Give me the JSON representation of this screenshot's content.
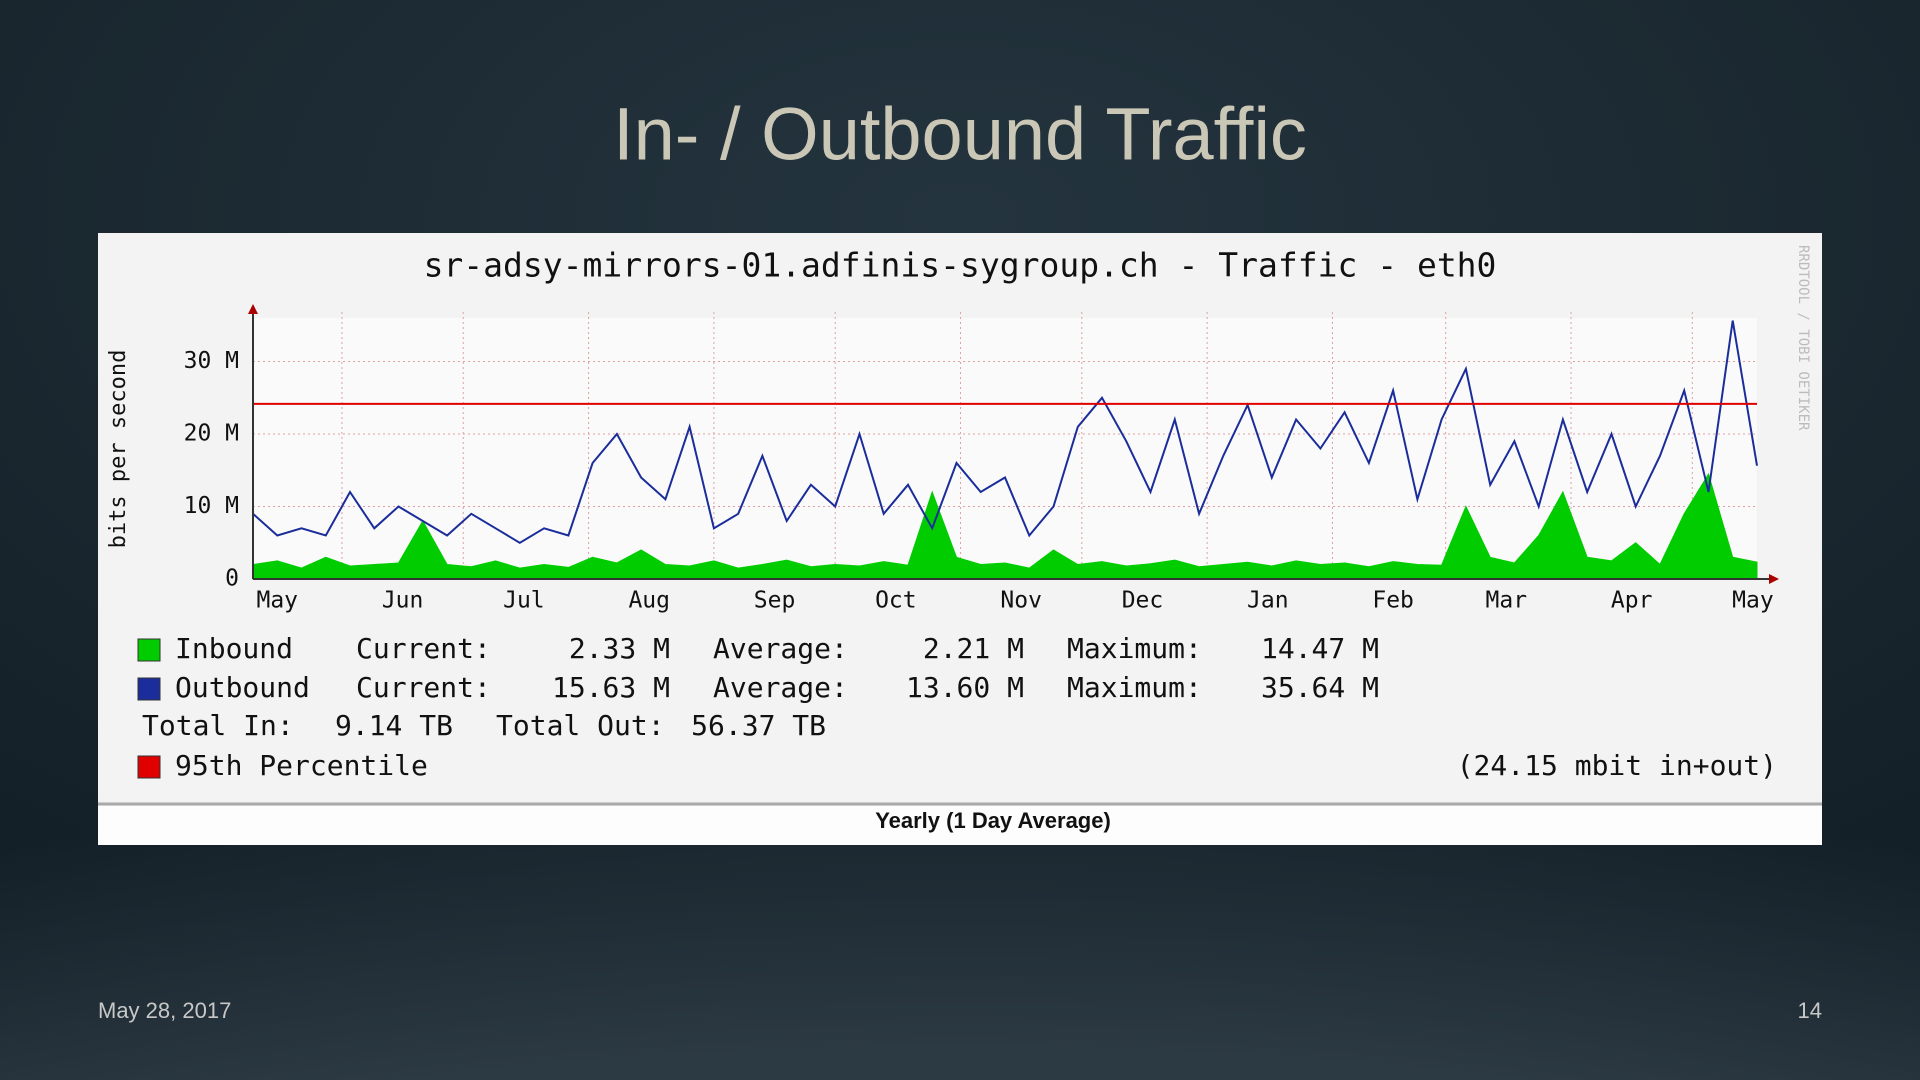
{
  "slide_title": "In- / Outbound Traffic",
  "date": "May 28, 2017",
  "page_number": "14",
  "chart_data": {
    "type": "line",
    "title": "sr-adsy-mirrors-01.adfinis-sygroup.ch - Traffic - eth0",
    "y_label": "bits per second",
    "watermark": "RRDTOOL / TOBI OETIKER",
    "footer": "Yearly (1 Day Average)",
    "xlim": [
      0,
      372
    ],
    "xticks": [
      {
        "value": -9,
        "label": "May"
      },
      {
        "value": 22,
        "label": "Jun"
      },
      {
        "value": 52,
        "label": "Jul"
      },
      {
        "value": 83,
        "label": "Aug"
      },
      {
        "value": 114,
        "label": "Sep"
      },
      {
        "value": 144,
        "label": "Oct"
      },
      {
        "value": 175,
        "label": "Nov"
      },
      {
        "value": 205,
        "label": "Dec"
      },
      {
        "value": 236,
        "label": "Jan"
      },
      {
        "value": 267,
        "label": "Feb"
      },
      {
        "value": 295,
        "label": "Mar"
      },
      {
        "value": 326,
        "label": "Apr"
      },
      {
        "value": 356,
        "label": "May"
      }
    ],
    "ylim": [
      0,
      36
    ],
    "yticks": [
      0,
      {
        "value": 10,
        "label": "10 M"
      },
      {
        "value": 20,
        "label": "20 M"
      },
      {
        "value": 30,
        "label": "30 M"
      }
    ],
    "grid": true,
    "x": [
      0,
      6,
      12,
      18,
      24,
      30,
      36,
      42,
      48,
      54,
      60,
      66,
      72,
      78,
      84,
      90,
      96,
      102,
      108,
      114,
      120,
      126,
      132,
      138,
      144,
      150,
      156,
      162,
      168,
      174,
      180,
      186,
      192,
      198,
      204,
      210,
      216,
      222,
      228,
      234,
      240,
      246,
      252,
      258,
      264,
      270,
      276,
      282,
      288,
      294,
      300,
      306,
      312,
      318,
      324,
      330,
      336,
      342,
      348,
      354,
      360,
      366,
      372
    ],
    "series": [
      {
        "name": "Inbound",
        "color": "#00cc00",
        "style": "area",
        "stats": [
          "Current:",
          "2.33 M",
          "Average:",
          "2.21 M",
          "Maximum:",
          "14.47 M"
        ],
        "values": [
          2,
          2.5,
          1.5,
          3,
          1.8,
          2,
          2.2,
          8,
          2,
          1.7,
          2.5,
          1.5,
          2,
          1.6,
          3,
          2.2,
          4,
          2,
          1.8,
          2.5,
          1.5,
          2,
          2.6,
          1.7,
          2,
          1.8,
          2.4,
          1.9,
          12,
          3,
          2,
          2.2,
          1.5,
          4,
          2,
          2.4,
          1.8,
          2.1,
          2.6,
          1.7,
          2,
          2.3,
          1.8,
          2.5,
          2,
          2.2,
          1.7,
          2.4,
          2,
          1.9,
          10,
          3,
          2.2,
          6,
          12,
          3,
          2.5,
          5,
          2,
          9,
          14.47,
          3,
          2.33
        ]
      },
      {
        "name": "Outbound",
        "color": "#1a2d9a",
        "style": "line",
        "stats": [
          "Current:",
          "15.63 M",
          "Average:",
          "13.60 M",
          "Maximum:",
          "35.64 M"
        ],
        "values": [
          9,
          6,
          7,
          6,
          12,
          7,
          10,
          8,
          6,
          9,
          7,
          5,
          7,
          6,
          16,
          20,
          14,
          11,
          21,
          7,
          9,
          17,
          8,
          13,
          10,
          20,
          9,
          13,
          7,
          16,
          12,
          14,
          6,
          10,
          21,
          25,
          19,
          12,
          22,
          9,
          17,
          24,
          14,
          22,
          18,
          23,
          16,
          26,
          11,
          22,
          29,
          13,
          19,
          10,
          22,
          12,
          20,
          10,
          17,
          26,
          12,
          35.64,
          15.63
        ]
      }
    ],
    "totals": [
      "Total In:",
      "9.14 TB",
      "Total Out:",
      "56.37 TB"
    ],
    "percentile": {
      "name": "95th Percentile",
      "value": 24.15,
      "color": "#e00000",
      "label": "(24.15 mbit in+out)"
    }
  }
}
